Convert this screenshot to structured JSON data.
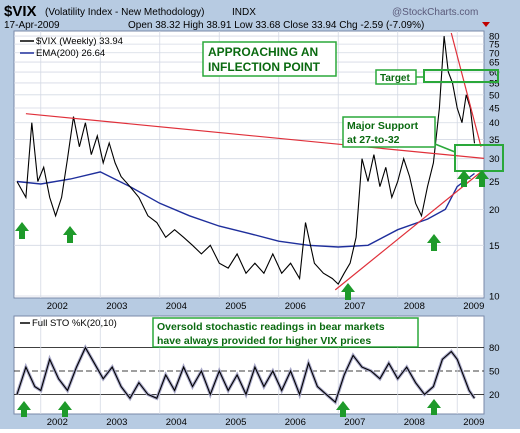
{
  "header": {
    "symbol": "$VIX",
    "name": "(Volatility Index - New Methodology)",
    "exchange": "INDX",
    "date": "17-Apr-2009",
    "quote": "Open 38.32  High 38.91  Low 33.68  Close 33.94  Chg -2.59 (-7.09%)",
    "watermark": "@StockCharts.com"
  },
  "colors": {
    "vix_line": "#000000",
    "ema_line": "#1f2f9c",
    "trendline": "#e0303a",
    "annotation_box": "#2aa83a",
    "arrow": "#1e9a2a",
    "annotation_text": "#0a6a10",
    "panel_bg": "#ffffff",
    "frame_bg": "#b7cbe2"
  },
  "chart_data": [
    {
      "type": "line",
      "title": "$VIX (Volatility Index - New Methodology) INDX",
      "yscale": "log",
      "ylim": [
        10,
        82
      ],
      "y_ticks": [
        10,
        15,
        20,
        25,
        30,
        35,
        40,
        45,
        50,
        55,
        60,
        65,
        70,
        75,
        80
      ],
      "x_ticks": [
        "2002",
        "2003",
        "2004",
        "2005",
        "2006",
        "2007",
        "2008",
        "2009"
      ],
      "grid": true,
      "legend": "top-left",
      "series": [
        {
          "name": "$VIX (Weekly) 33.94",
          "x": [
            2001.6,
            2001.75,
            2001.85,
            2001.95,
            2002.05,
            2002.15,
            2002.25,
            2002.35,
            2002.45,
            2002.55,
            2002.65,
            2002.75,
            2002.85,
            2002.95,
            2003.05,
            2003.15,
            2003.25,
            2003.35,
            2003.5,
            2003.65,
            2003.8,
            2003.95,
            2004.1,
            2004.25,
            2004.4,
            2004.55,
            2004.7,
            2004.85,
            2005.0,
            2005.15,
            2005.3,
            2005.45,
            2005.6,
            2005.75,
            2005.9,
            2006.05,
            2006.2,
            2006.35,
            2006.45,
            2006.6,
            2006.75,
            2006.9,
            2007.0,
            2007.1,
            2007.2,
            2007.3,
            2007.4,
            2007.5,
            2007.6,
            2007.7,
            2007.8,
            2007.9,
            2008.0,
            2008.1,
            2008.2,
            2008.3,
            2008.4,
            2008.5,
            2008.6,
            2008.7,
            2008.78,
            2008.85,
            2008.92,
            2009.0,
            2009.08,
            2009.15,
            2009.22,
            2009.29
          ],
          "values": [
            25,
            22,
            40,
            25,
            28,
            22,
            19,
            22,
            30,
            42,
            33,
            40,
            31,
            36,
            29,
            34,
            29,
            26,
            24,
            22,
            19,
            18,
            16,
            17,
            16,
            15,
            14,
            15,
            13,
            12.5,
            14,
            12,
            13,
            12,
            14,
            12,
            13,
            11.5,
            18,
            13,
            12,
            11.5,
            11,
            12,
            13,
            16,
            30,
            25,
            31,
            24,
            28,
            22,
            25,
            30,
            26,
            21,
            19,
            24,
            29,
            45,
            80,
            60,
            55,
            45,
            40,
            50,
            45,
            33.94
          ]
        },
        {
          "name": "EMA(200) 26.64",
          "x": [
            2001.6,
            2002.0,
            2002.5,
            2003.0,
            2003.5,
            2004.0,
            2004.5,
            2005.0,
            2005.5,
            2006.0,
            2006.5,
            2007.0,
            2007.5,
            2008.0,
            2008.5,
            2008.8,
            2009.0,
            2009.29
          ],
          "values": [
            25,
            24.5,
            25.5,
            27,
            24,
            21,
            19,
            17.5,
            16.5,
            15.5,
            15,
            14.8,
            15,
            17,
            18.5,
            20,
            24,
            26.64
          ]
        }
      ],
      "trendlines": [
        {
          "from": {
            "x": 2001.75,
            "y": 43
          },
          "to": {
            "x": 2009.5,
            "y": 30
          }
        },
        {
          "from": {
            "x": 2006.95,
            "y": 10.5
          },
          "to": {
            "x": 2009.4,
            "y": 27
          }
        },
        {
          "from": {
            "x": 2008.9,
            "y": 82
          },
          "to": {
            "x": 2009.4,
            "y": 33
          }
        }
      ],
      "annotations": {
        "headline": [
          "APPROACHING AN",
          "INFLECTION POINT"
        ],
        "target_label": "Target",
        "support_label": [
          "Major Support",
          "at 27-to-32"
        ]
      }
    },
    {
      "type": "line",
      "title": "Full STO %K(20,10)",
      "ylim": [
        0,
        100
      ],
      "y_ticks": [
        20,
        50,
        80
      ],
      "x_ticks": [
        "2002",
        "2003",
        "2004",
        "2005",
        "2006",
        "2007",
        "2008",
        "2009"
      ],
      "series": [
        {
          "name": "Full STO %K(20,10)",
          "x": [
            2001.6,
            2001.75,
            2001.9,
            2002.0,
            2002.15,
            2002.3,
            2002.45,
            2002.6,
            2002.75,
            2002.9,
            2003.05,
            2003.2,
            2003.35,
            2003.5,
            2003.65,
            2003.8,
            2003.95,
            2004.1,
            2004.25,
            2004.4,
            2004.55,
            2004.7,
            2004.85,
            2005.0,
            2005.15,
            2005.3,
            2005.45,
            2005.6,
            2005.75,
            2005.9,
            2006.05,
            2006.2,
            2006.35,
            2006.5,
            2006.65,
            2006.8,
            2006.95,
            2007.1,
            2007.25,
            2007.4,
            2007.55,
            2007.7,
            2007.85,
            2008.0,
            2008.15,
            2008.3,
            2008.45,
            2008.6,
            2008.75,
            2008.9,
            2009.0,
            2009.1,
            2009.2,
            2009.29
          ],
          "values": [
            20,
            55,
            30,
            25,
            65,
            40,
            25,
            55,
            80,
            60,
            40,
            55,
            30,
            15,
            35,
            20,
            15,
            45,
            25,
            55,
            30,
            50,
            20,
            50,
            25,
            45,
            20,
            55,
            30,
            50,
            25,
            50,
            20,
            60,
            30,
            20,
            10,
            45,
            70,
            55,
            50,
            40,
            60,
            40,
            55,
            35,
            20,
            30,
            65,
            75,
            65,
            45,
            25,
            15
          ]
        }
      ],
      "annotations": {
        "note": [
          "Oversold stochastic readings in bear markets",
          "have always provided for higher VIX prices"
        ]
      }
    }
  ]
}
